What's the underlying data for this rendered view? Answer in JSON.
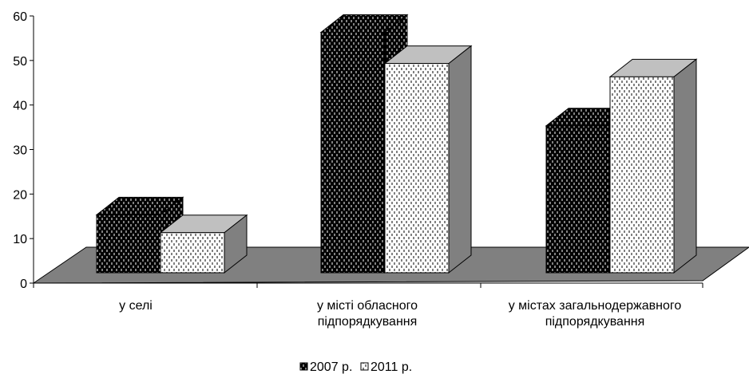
{
  "chart_data": {
    "type": "bar3d",
    "categories": [
      "у селі",
      "у місті обласного\nпідпорядкування",
      "у містах загальнодержавного\nпідпорядкування"
    ],
    "series": [
      {
        "name": "2007 р.",
        "color": "#000000",
        "values": [
          13,
          54,
          33
        ]
      },
      {
        "name": "2011 р.",
        "color": "#ffffff",
        "values": [
          9,
          47,
          44
        ]
      }
    ],
    "ylim": [
      0,
      60
    ],
    "yticks": [
      0,
      10,
      20,
      30,
      40,
      50,
      60
    ],
    "legend": "bottom"
  }
}
